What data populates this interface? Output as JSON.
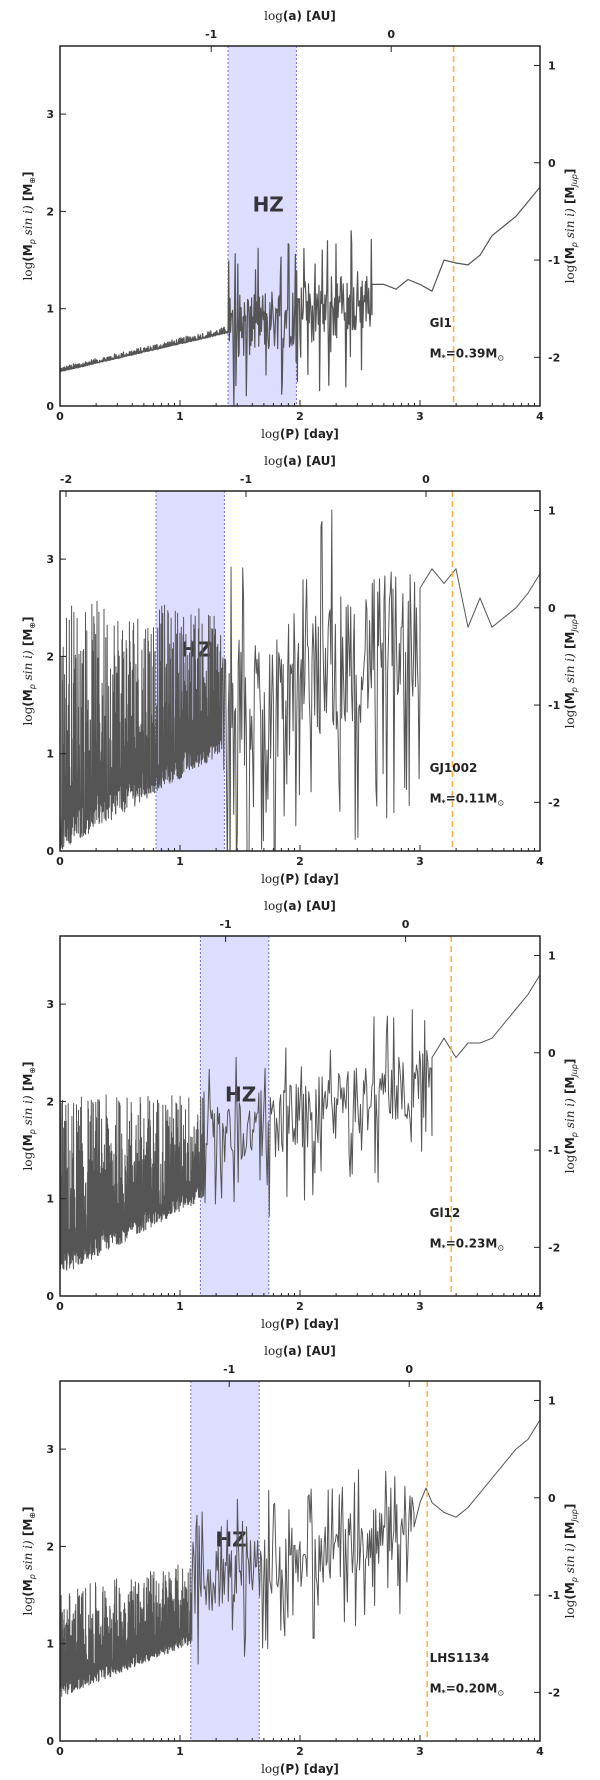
{
  "chart_data": [
    {
      "type": "line",
      "star": "Gl1",
      "mass_label": "M",
      "mass_sub": "*",
      "mass_value": "=0.39M",
      "mass_sun": "⊙",
      "hz_label": "HZ",
      "hz_range": [
        1.4,
        1.97
      ],
      "snowline_logP": 3.28,
      "xlim": [
        0,
        4
      ],
      "ylim": [
        0,
        3.7
      ],
      "x_ticks": [
        "0",
        "1",
        "2",
        "3",
        "4"
      ],
      "y_ticks": [
        "0",
        "1",
        "2",
        "3"
      ],
      "top_ticks": [
        {
          "label": "-1",
          "logP": 1.26
        },
        {
          "label": "0",
          "logP": 2.76
        }
      ],
      "right_ticks": [
        {
          "label": "1",
          "logM": 3.5
        },
        {
          "label": "0",
          "logM": 2.5
        },
        {
          "label": "-1",
          "logM": 1.5
        },
        {
          "label": "-2",
          "logM": 0.5
        }
      ],
      "noise": {
        "x_end": 1.4,
        "base_start": 0.35,
        "base_end": 0.75,
        "amp_start": 0.05,
        "amp_end": 0.07,
        "dense": false
      },
      "spikes": {
        "x_end": 2.6,
        "base_start": 0.8,
        "base_end": 1.1,
        "amp": 0.55
      },
      "curve_x": [
        2.6,
        2.7,
        2.8,
        2.9,
        3.0,
        3.1,
        3.2,
        3.3,
        3.4,
        3.5,
        3.6,
        3.7,
        3.8,
        3.9,
        4.0
      ],
      "curve_y": [
        1.25,
        1.25,
        1.2,
        1.3,
        1.25,
        1.18,
        1.5,
        1.47,
        1.45,
        1.55,
        1.75,
        1.85,
        1.95,
        2.1,
        2.25
      ]
    },
    {
      "type": "line",
      "star": "GJ1002",
      "mass_label": "M",
      "mass_sub": "*",
      "mass_value": "=0.11M",
      "mass_sun": "⊙",
      "hz_label": "HZ",
      "hz_range": [
        0.8,
        1.37
      ],
      "snowline_logP": 3.27,
      "xlim": [
        0,
        4
      ],
      "ylim": [
        0,
        3.7
      ],
      "x_ticks": [
        "0",
        "1",
        "2",
        "3",
        "4"
      ],
      "y_ticks": [
        "0",
        "1",
        "2",
        "3"
      ],
      "top_ticks": [
        {
          "label": "-2",
          "logP": 0.05
        },
        {
          "label": "-1",
          "logP": 1.55
        },
        {
          "label": "0",
          "logP": 3.05
        }
      ],
      "right_ticks": [
        {
          "label": "1",
          "logM": 3.5
        },
        {
          "label": "0",
          "logM": 2.5
        },
        {
          "label": "-1",
          "logM": 1.5
        },
        {
          "label": "-2",
          "logM": 0.5
        }
      ],
      "noise": {
        "x_end": 1.35,
        "base_start": 0.0,
        "base_end": 1.0,
        "amp_start": 2.6,
        "amp_end": 1.5,
        "dense": true
      },
      "spikes": {
        "x_end": 3.0,
        "base_start": 1.4,
        "base_end": 2.3,
        "amp": 1.2
      },
      "curve_x": [
        3.0,
        3.1,
        3.2,
        3.3,
        3.4,
        3.5,
        3.6,
        3.7,
        3.8,
        3.9,
        4.0
      ],
      "curve_y": [
        2.7,
        2.9,
        2.75,
        2.9,
        2.3,
        2.6,
        2.3,
        2.4,
        2.5,
        2.65,
        2.85
      ]
    },
    {
      "type": "line",
      "star": "Gl12",
      "mass_label": "M",
      "mass_sub": "*",
      "mass_value": "=0.23M",
      "mass_sun": "⊙",
      "hz_label": "HZ",
      "hz_range": [
        1.17,
        1.74
      ],
      "snowline_logP": 3.26,
      "xlim": [
        0,
        4
      ],
      "ylim": [
        0,
        3.7
      ],
      "x_ticks": [
        "0",
        "1",
        "2",
        "3",
        "4"
      ],
      "y_ticks": [
        "0",
        "1",
        "2",
        "3"
      ],
      "top_ticks": [
        {
          "label": "-1",
          "logP": 1.38
        },
        {
          "label": "0",
          "logP": 2.88
        }
      ],
      "right_ticks": [
        {
          "label": "1",
          "logM": 3.5
        },
        {
          "label": "0",
          "logM": 2.5
        },
        {
          "label": "-1",
          "logM": 1.5
        },
        {
          "label": "-2",
          "logM": 0.5
        }
      ],
      "noise": {
        "x_end": 1.2,
        "base_start": 0.2,
        "base_end": 1.0,
        "amp_start": 1.85,
        "amp_end": 1.1,
        "dense": true
      },
      "spikes": {
        "x_end": 3.1,
        "base_start": 1.6,
        "base_end": 2.2,
        "amp": 0.6
      },
      "curve_x": [
        3.1,
        3.2,
        3.3,
        3.4,
        3.5,
        3.6,
        3.7,
        3.8,
        3.9,
        4.0
      ],
      "curve_y": [
        2.45,
        2.65,
        2.45,
        2.6,
        2.6,
        2.65,
        2.8,
        2.95,
        3.1,
        3.3
      ]
    },
    {
      "type": "line",
      "star": "LHS1134",
      "mass_label": "M",
      "mass_sub": "*",
      "mass_value": "=0.20M",
      "mass_sun": "⊙",
      "hz_label": "HZ",
      "hz_range": [
        1.09,
        1.66
      ],
      "snowline_logP": 3.06,
      "xlim": [
        0,
        4
      ],
      "ylim": [
        0,
        3.7
      ],
      "x_ticks": [
        "0",
        "1",
        "2",
        "3",
        "4"
      ],
      "y_ticks": [
        "0",
        "1",
        "2",
        "3"
      ],
      "top_ticks": [
        {
          "label": "-1",
          "logP": 1.41
        },
        {
          "label": "0",
          "logP": 2.91
        }
      ],
      "right_ticks": [
        {
          "label": "1",
          "logM": 3.5
        },
        {
          "label": "0",
          "logM": 2.5
        },
        {
          "label": "-1",
          "logM": 1.5
        },
        {
          "label": "-2",
          "logM": 0.5
        }
      ],
      "noise": {
        "x_end": 1.1,
        "base_start": 0.45,
        "base_end": 1.0,
        "amp_start": 1.1,
        "amp_end": 0.85,
        "dense": true
      },
      "spikes": {
        "x_end": 2.95,
        "base_start": 1.6,
        "base_end": 2.2,
        "amp": 0.55
      },
      "curve_x": [
        2.95,
        3.0,
        3.05,
        3.1,
        3.2,
        3.3,
        3.4,
        3.5,
        3.6,
        3.7,
        3.8,
        3.9,
        4.0
      ],
      "curve_y": [
        2.2,
        2.45,
        2.6,
        2.45,
        2.35,
        2.3,
        2.4,
        2.55,
        2.7,
        2.85,
        3.0,
        3.1,
        3.3
      ]
    }
  ],
  "axis_labels": {
    "log": "log",
    "top_a": "(a)",
    "top_unit": " [AU]",
    "bottom_p": "(P)",
    "bottom_unit": " [day]",
    "left_m": "(M",
    "left_p": "p",
    "left_sini": " sin i)",
    "left_unit": " [M",
    "left_sun": "⊕",
    "right_jup": "Jup",
    "close": "]"
  },
  "colors": {
    "hz_fill": "#ddddff",
    "hz_edge": "#6f6fd6",
    "hz_text": "#a9a9f0",
    "data": "#555555",
    "snowline": "#ffb347",
    "axis": "#222222"
  }
}
